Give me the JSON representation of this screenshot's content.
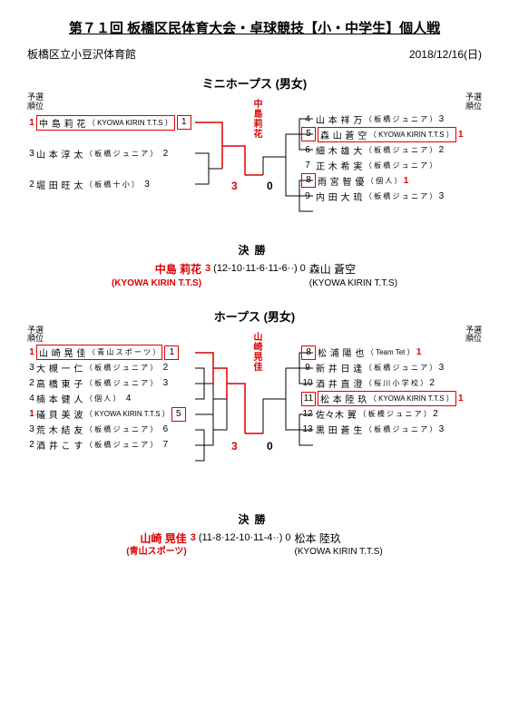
{
  "title": "第７１回 板橋区民体育大会・卓球競技【小・中学生】個人戦",
  "venue": "板橋区立小豆沢体育館",
  "date": "2018/12/16(日)",
  "rank_label": "予選\n順位",
  "divisions": [
    {
      "name": "ミニホープス (男女)",
      "winner_vtext": "中島莉花",
      "semi_score_l": "3",
      "semi_score_r": "0",
      "left": [
        {
          "rank": "1",
          "rank_red": true,
          "seed": "1",
          "seedbox": true,
          "name": "中 島  莉 花",
          "aff": "（ KYOWA KIRIN  T.T.S ）",
          "redbox": true
        },
        {
          "rank": "3",
          "rank_red": false,
          "seed": "2",
          "seedbox": false,
          "name": "山 本  淳 太",
          "aff": "（ 板 橋 ジ ュ ニ ア ）",
          "redbox": false
        },
        {
          "rank": "2",
          "rank_red": false,
          "seed": "3",
          "seedbox": false,
          "name": "堀 田  旺 太",
          "aff": "（ 板  橋  十  小 ）",
          "redbox": false
        }
      ],
      "right": [
        {
          "rank": "3",
          "rank_red": false,
          "seed": "4",
          "seedbox": false,
          "name": "山 本  祥 万",
          "aff": "（ 板 橋 ジ ュ ニ ア ）",
          "redbox": false
        },
        {
          "rank": "1",
          "rank_red": true,
          "seed": "5",
          "seedbox": true,
          "name": "森 山  蒼 空",
          "aff": "（ KYOWA KIRIN  T.T.S ）",
          "redbox": true
        },
        {
          "rank": "2",
          "rank_red": false,
          "seed": "6",
          "seedbox": false,
          "name": "細 木  雄 大",
          "aff": "（ 板 橋 ジ ュ ニ ア ）",
          "redbox": false
        },
        {
          "rank": "",
          "rank_red": false,
          "seed": "7",
          "seedbox": false,
          "name": "正 木  希 実",
          "aff": "（ 板 橋 ジ ュ ニ ア ）",
          "redbox": false
        },
        {
          "rank": "1",
          "rank_red": true,
          "seed": "8",
          "seedbox": true,
          "name": "雨 宮  智 優",
          "aff": "（ 個          人 ）",
          "redbox": false
        },
        {
          "rank": "3",
          "rank_red": false,
          "seed": "9",
          "seedbox": false,
          "name": "内 田  大 琉",
          "aff": "（ 板 橋 ジ ュ ニ ア ）",
          "redbox": false
        }
      ],
      "final": {
        "winner_name": "中島 莉花",
        "winner_aff": "(KYOWA KIRIN T.T.S)",
        "loser_name": "森山 蒼空",
        "loser_aff": "(KYOWA KIRIN  T.T.S)",
        "w": "3",
        "games": "(12-10·11-6·11-6··)",
        "l": "0"
      }
    },
    {
      "name": "ホープス (男女)",
      "winner_vtext": "山崎晃佳",
      "semi_score_l": "3",
      "semi_score_r": "0",
      "left": [
        {
          "rank": "1",
          "rank_red": true,
          "seed": "1",
          "seedbox": true,
          "name": "山 崎  晃 佳",
          "aff": "（ 青 山 ス ポ ー ツ ）",
          "redbox": true
        },
        {
          "rank": "3",
          "rank_red": false,
          "seed": "2",
          "seedbox": false,
          "name": "大 槻  一 仁",
          "aff": "（ 板 橋 ジ ュ ニ ア ）",
          "redbox": false
        },
        {
          "rank": "2",
          "rank_red": false,
          "seed": "3",
          "seedbox": false,
          "name": "高 橋  東 子",
          "aff": "（ 板 橋 ジ ュ ニ ア ）",
          "redbox": false
        },
        {
          "rank": "4",
          "rank_red": false,
          "seed": "4",
          "seedbox": false,
          "name": "楠 本  健 人",
          "aff": "（ 個          人 ）",
          "redbox": false
        },
        {
          "rank": "1",
          "rank_red": true,
          "seed": "5",
          "seedbox": true,
          "name": "礒 貝  美 波",
          "aff": "（ KYOWA KIRIN  T.T.S ）",
          "redbox": false
        },
        {
          "rank": "3",
          "rank_red": false,
          "seed": "6",
          "seedbox": false,
          "name": "荒 木  結 友",
          "aff": "（ 板 橋 ジ ュ ニ ア ）",
          "redbox": false
        },
        {
          "rank": "2",
          "rank_red": false,
          "seed": "7",
          "seedbox": false,
          "name": "酒 井  こ す",
          "aff": "（ 板 橋 ジ ュ ニ ア ）",
          "redbox": false
        }
      ],
      "right": [
        {
          "rank": "1",
          "rank_red": true,
          "seed": "8",
          "seedbox": true,
          "name": "松 浦  陽 也",
          "aff": "（ Team  Tet ）",
          "redbox": false
        },
        {
          "rank": "3",
          "rank_red": false,
          "seed": "9",
          "seedbox": false,
          "name": "新 井  日 逢",
          "aff": "（ 板 橋 ジ ュ ニ ア ）",
          "redbox": false
        },
        {
          "rank": "2",
          "rank_red": false,
          "seed": "10",
          "seedbox": false,
          "name": "酒 井  直 澄",
          "aff": "（ 桜 川 小 学 校 ）",
          "redbox": false
        },
        {
          "rank": "1",
          "rank_red": true,
          "seed": "11",
          "seedbox": true,
          "name": "松 本  陸 玖",
          "aff": "（ KYOWA KIRIN  T.T.S ）",
          "redbox": true
        },
        {
          "rank": "2",
          "rank_red": false,
          "seed": "12",
          "seedbox": false,
          "name": "佐々木  翼",
          "aff": "（ 板 橋 ジ ュ ニ ア ）",
          "redbox": false
        },
        {
          "rank": "3",
          "rank_red": false,
          "seed": "13",
          "seedbox": false,
          "name": "黒 田  蒼 生",
          "aff": "（ 板 橋 ジ ュ ニ ア ）",
          "redbox": false
        }
      ],
      "final": {
        "winner_name": "山崎 晃佳",
        "winner_aff": "(青山スポーツ)",
        "loser_name": "松本 陸玖",
        "loser_aff": "(KYOWA KIRIN  T.T.S)",
        "w": "3",
        "games": "(11-8·12-10·11-4··)",
        "l": "0"
      }
    }
  ]
}
